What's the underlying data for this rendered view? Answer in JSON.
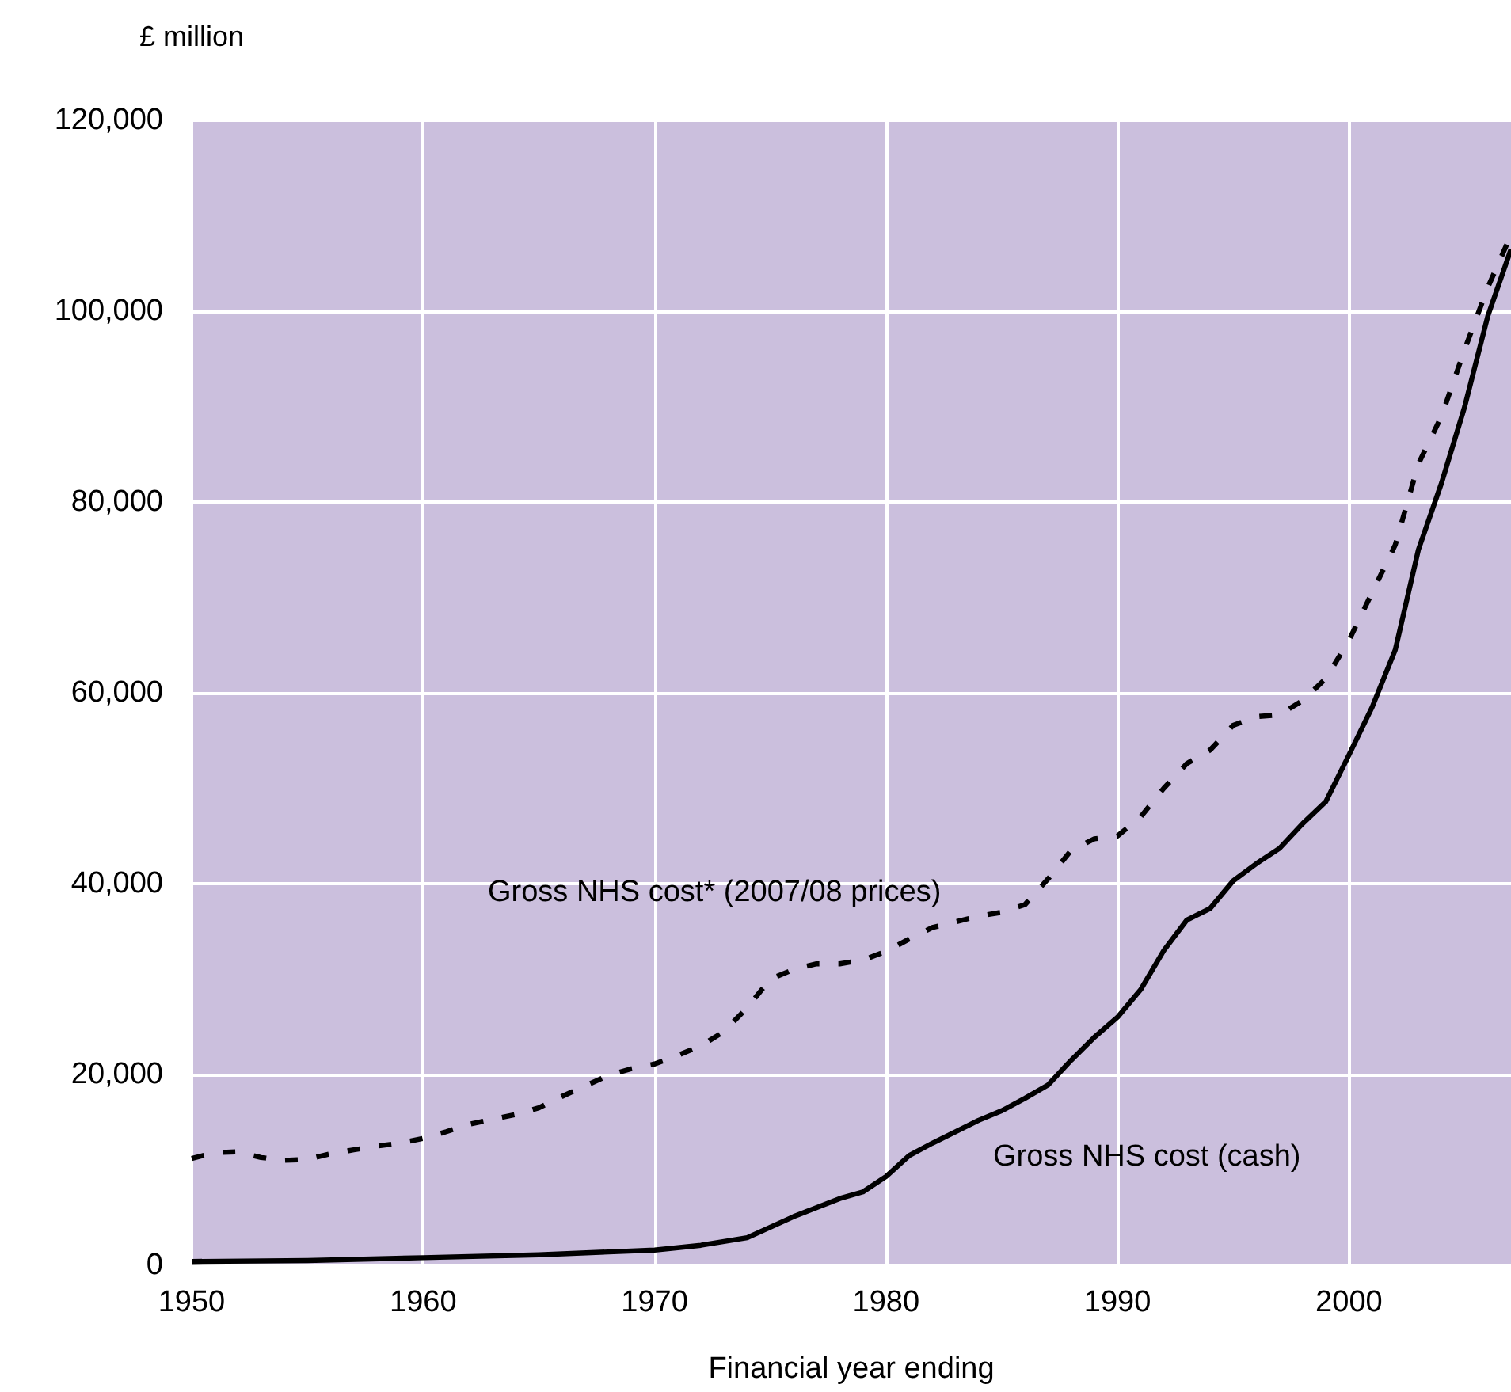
{
  "chart_data": {
    "type": "line",
    "ylabel": "£ million",
    "xlabel": "Financial year ending",
    "xlim": [
      1950,
      2007
    ],
    "xticks": [
      1950,
      1960,
      1970,
      1980,
      1990,
      2000
    ],
    "ylim": [
      0,
      120000
    ],
    "yticks": [
      0,
      {
        "value": 20000,
        "label": "20,000"
      },
      {
        "value": 40000,
        "label": "40,000"
      },
      {
        "value": 60000,
        "label": "60,000"
      },
      {
        "value": 80000,
        "label": "80,000"
      },
      {
        "value": 100000,
        "label": "100,000"
      },
      {
        "value": 120000,
        "label": "120,000"
      }
    ],
    "grid": true,
    "marker": "none",
    "series": [
      {
        "name": "Gross NHS cost* (2007/08 prices)",
        "color": "#000000",
        "line_style": "dashed",
        "x": [
          1950,
          1951,
          1952,
          1953,
          1954,
          1955,
          1956,
          1957,
          1958,
          1959,
          1960,
          1961,
          1962,
          1963,
          1964,
          1965,
          1966,
          1967,
          1968,
          1969,
          1970,
          1971,
          1972,
          1973,
          1974,
          1975,
          1976,
          1977,
          1978,
          1979,
          1980,
          1981,
          1982,
          1983,
          1984,
          1985,
          1986,
          1987,
          1988,
          1989,
          1990,
          1991,
          1992,
          1993,
          1994,
          1995,
          1996,
          1997,
          1998,
          1999,
          2000,
          2001,
          2002,
          2003,
          2004,
          2005,
          2006,
          2007
        ],
        "values": [
          11200,
          11800,
          11900,
          11300,
          11000,
          11100,
          11700,
          12100,
          12500,
          12800,
          13300,
          14000,
          14800,
          15300,
          15800,
          16500,
          17700,
          18800,
          19900,
          20600,
          21100,
          22000,
          23000,
          24500,
          27000,
          30000,
          31000,
          31600,
          31600,
          32000,
          32900,
          34200,
          35400,
          36000,
          36600,
          37000,
          37800,
          40500,
          43500,
          44700,
          45000,
          47000,
          50000,
          52600,
          54000,
          56600,
          57500,
          57700,
          59200,
          61500,
          65500,
          70500,
          75500,
          84000,
          89000,
          96000,
          102500,
          108000
        ]
      },
      {
        "name": "Gross NHS cost (cash)",
        "color": "#000000",
        "line_style": "solid",
        "x": [
          1950,
          1955,
          1960,
          1965,
          1970,
          1972,
          1974,
          1976,
          1978,
          1979,
          1980,
          1981,
          1982,
          1983,
          1984,
          1985,
          1986,
          1987,
          1988,
          1989,
          1990,
          1991,
          1992,
          1993,
          1994,
          1995,
          1996,
          1997,
          1998,
          1999,
          2000,
          2001,
          2002,
          2003,
          2004,
          2005,
          2006,
          2007
        ],
        "values": [
          400,
          500,
          800,
          1100,
          1600,
          2100,
          2900,
          5100,
          7000,
          7700,
          9300,
          11500,
          12800,
          14000,
          15200,
          16200,
          17500,
          18900,
          21500,
          23900,
          26000,
          28900,
          33000,
          36200,
          37400,
          40300,
          42100,
          43700,
          46300,
          48600,
          53500,
          58500,
          64500,
          75000,
          82000,
          90000,
          99500,
          106500
        ]
      }
    ]
  }
}
